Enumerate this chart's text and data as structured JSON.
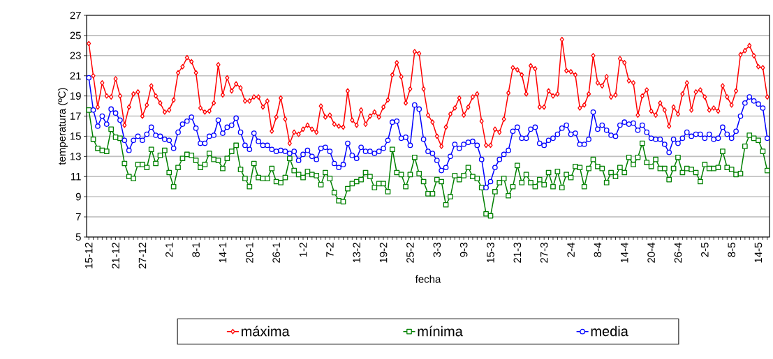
{
  "chart_data": {
    "type": "line",
    "xlabel": "fecha",
    "ylabel": "temperatura (ºC)",
    "categories": [
      "15-12",
      null,
      null,
      null,
      null,
      null,
      "21-12",
      null,
      null,
      null,
      null,
      null,
      "27-12",
      null,
      null,
      null,
      null,
      null,
      "2-1",
      null,
      null,
      null,
      null,
      null,
      "8-1",
      null,
      null,
      null,
      null,
      null,
      "14-1",
      null,
      null,
      null,
      null,
      null,
      "20-1",
      null,
      null,
      null,
      null,
      null,
      "26-1",
      null,
      null,
      null,
      null,
      null,
      "1-2",
      null,
      null,
      null,
      null,
      null,
      "7-2",
      null,
      null,
      null,
      null,
      null,
      "13-2",
      null,
      null,
      null,
      null,
      null,
      "19-2",
      null,
      null,
      null,
      null,
      null,
      "25-2",
      null,
      null,
      null,
      null,
      null,
      "3-3",
      null,
      null,
      null,
      null,
      null,
      "9-3",
      null,
      null,
      null,
      null,
      null,
      "15-3",
      null,
      null,
      null,
      null,
      null,
      "21-3",
      null,
      null,
      null,
      null,
      null,
      "27-3",
      null,
      null,
      null,
      null,
      null,
      "2-4",
      null,
      null,
      null,
      null,
      null,
      "8-4",
      null,
      null,
      null,
      null,
      null,
      "14-4",
      null,
      null,
      null,
      null,
      null,
      "20-4",
      null,
      null,
      null,
      null,
      null,
      "26-4",
      null,
      null,
      null,
      null,
      null,
      "2-5",
      null,
      null,
      null,
      null,
      null,
      "8-5",
      null,
      null,
      null,
      null,
      null,
      "14-5",
      null,
      null
    ],
    "series": [
      {
        "name": "máxima",
        "color": "#ff0000",
        "marker": "diamond",
        "values": [
          24.2,
          21.0,
          17.9,
          20.3,
          19.0,
          18.9,
          20.7,
          19.0,
          16.1,
          17.9,
          19.2,
          19.4,
          17.0,
          18.1,
          20.0,
          19.0,
          18.3,
          17.4,
          17.6,
          18.6,
          21.3,
          21.9,
          22.8,
          22.4,
          21.3,
          17.8,
          17.4,
          17.5,
          18.3,
          22.1,
          19.1,
          20.8,
          19.5,
          20.2,
          19.8,
          18.5,
          18.5,
          18.9,
          18.9,
          17.9,
          18.5,
          15.5,
          16.9,
          18.8,
          16.7,
          14.3,
          15.4,
          15.2,
          15.7,
          16.1,
          15.7,
          15.4,
          18.0,
          16.9,
          17.1,
          16.2,
          16.0,
          15.9,
          19.5,
          16.6,
          16.1,
          17.6,
          16.2,
          17.0,
          17.4,
          16.9,
          17.9,
          18.6,
          21.1,
          22.3,
          20.9,
          18.3,
          19.7,
          23.4,
          23.2,
          19.7,
          17.1,
          16.4,
          15.0,
          14.0,
          15.9,
          17.2,
          17.8,
          18.8,
          17.1,
          17.9,
          18.9,
          19.2,
          16.5,
          14.1,
          14.1,
          15.7,
          15.4,
          16.7,
          19.3,
          21.8,
          21.6,
          21.1,
          19.2,
          22.0,
          21.7,
          17.9,
          17.9,
          19.5,
          19.0,
          19.2,
          24.6,
          21.5,
          21.4,
          21.1,
          17.8,
          18.1,
          19.2,
          23.0,
          20.3,
          20.0,
          20.9,
          18.9,
          19.1,
          22.7,
          22.3,
          20.5,
          20.3,
          17.1,
          19.0,
          19.6,
          17.5,
          17.1,
          18.3,
          17.6,
          16.0,
          17.9,
          17.2,
          19.2,
          20.3,
          17.6,
          19.4,
          19.6,
          18.9,
          17.6,
          17.8,
          17.5,
          20.0,
          18.9,
          18.1,
          19.5,
          23.1,
          23.5,
          24.0,
          23.0,
          21.9,
          21.8,
          18.9
        ]
      },
      {
        "name": "mínima",
        "color": "#008000",
        "marker": "square",
        "values": [
          17.6,
          14.7,
          13.8,
          13.6,
          13.5,
          15.7,
          14.9,
          14.8,
          12.3,
          11.0,
          10.8,
          12.2,
          12.2,
          11.9,
          13.7,
          12.3,
          13.1,
          13.6,
          11.4,
          10.0,
          11.9,
          12.8,
          13.2,
          13.1,
          12.6,
          11.9,
          12.2,
          13.3,
          12.7,
          12.6,
          11.8,
          12.8,
          13.5,
          14.1,
          11.7,
          10.8,
          10.0,
          12.3,
          10.9,
          10.8,
          10.8,
          11.8,
          10.5,
          10.4,
          10.9,
          12.8,
          11.6,
          11.2,
          10.9,
          11.5,
          11.2,
          11.1,
          10.2,
          11.4,
          10.8,
          9.4,
          8.6,
          8.5,
          9.8,
          10.3,
          10.5,
          10.7,
          11.4,
          11.0,
          9.9,
          10.3,
          10.3,
          9.5,
          13.7,
          11.4,
          11.2,
          10.0,
          11.2,
          12.9,
          11.3,
          10.5,
          9.3,
          9.3,
          10.7,
          10.5,
          8.2,
          9.0,
          11.1,
          10.7,
          11.1,
          11.9,
          11.0,
          10.8,
          9.9,
          7.3,
          7.1,
          9.5,
          10.4,
          10.8,
          9.1,
          10.0,
          12.1,
          10.4,
          11.2,
          10.4,
          10.0,
          10.7,
          10.2,
          11.4,
          10.0,
          11.5,
          9.9,
          11.2,
          10.9,
          12.0,
          11.9,
          10.0,
          11.8,
          12.7,
          12.0,
          11.8,
          10.4,
          11.4,
          11.0,
          11.9,
          11.4,
          12.9,
          12.2,
          12.9,
          14.3,
          12.4,
          12.0,
          12.7,
          11.8,
          11.8,
          10.7,
          11.8,
          12.9,
          11.4,
          11.8,
          11.7,
          11.4,
          10.5,
          12.2,
          11.8,
          11.8,
          11.9,
          13.5,
          11.9,
          11.7,
          11.2,
          11.3,
          14.0,
          15.1,
          14.8,
          14.6,
          13.5,
          11.6
        ]
      },
      {
        "name": "media",
        "color": "#0000ff",
        "marker": "circle",
        "values": [
          20.8,
          17.6,
          16.0,
          17.0,
          16.2,
          17.7,
          17.3,
          16.6,
          14.6,
          13.6,
          14.6,
          15.0,
          14.6,
          15.2,
          15.9,
          15.1,
          15.0,
          14.7,
          14.6,
          13.8,
          15.4,
          16.2,
          16.5,
          16.9,
          15.8,
          14.3,
          14.3,
          15.0,
          15.1,
          16.6,
          15.3,
          15.9,
          16.1,
          16.8,
          15.4,
          14.1,
          13.7,
          15.3,
          14.5,
          14.1,
          14.1,
          13.7,
          13.5,
          13.6,
          13.5,
          13.3,
          13.5,
          12.6,
          13.2,
          13.6,
          13.0,
          12.7,
          13.8,
          13.9,
          13.5,
          12.3,
          11.9,
          12.2,
          14.3,
          13.1,
          12.8,
          13.9,
          13.5,
          13.5,
          13.3,
          13.5,
          13.8,
          14.6,
          16.4,
          16.5,
          14.8,
          14.9,
          14.1,
          18.1,
          17.7,
          14.7,
          13.5,
          13.3,
          12.6,
          11.6,
          11.9,
          13.0,
          14.2,
          13.8,
          14.2,
          14.4,
          14.5,
          14.1,
          12.7,
          9.9,
          10.5,
          11.9,
          12.7,
          13.2,
          13.6,
          15.5,
          15.9,
          14.8,
          14.8,
          15.7,
          15.9,
          14.3,
          14.1,
          14.6,
          14.8,
          15.2,
          15.8,
          16.1,
          15.2,
          15.3,
          14.2,
          14.2,
          14.7,
          17.4,
          15.7,
          16.1,
          15.6,
          15.1,
          15.0,
          16.1,
          16.4,
          16.2,
          16.3,
          15.6,
          16.1,
          15.4,
          14.8,
          14.7,
          14.7,
          14.2,
          13.4,
          14.7,
          14.3,
          14.8,
          15.4,
          15.0,
          15.2,
          15.2,
          14.8,
          15.2,
          14.7,
          14.8,
          15.9,
          15.2,
          14.8,
          15.5,
          17.0,
          18.3,
          18.9,
          18.5,
          18.2,
          17.8,
          14.8
        ]
      }
    ],
    "ylim": [
      5,
      27
    ],
    "yticks": [
      5,
      7,
      9,
      11,
      13,
      15,
      17,
      19,
      21,
      23,
      25,
      27
    ],
    "grid": "y",
    "legend": "bottom",
    "line_style": "solid"
  }
}
